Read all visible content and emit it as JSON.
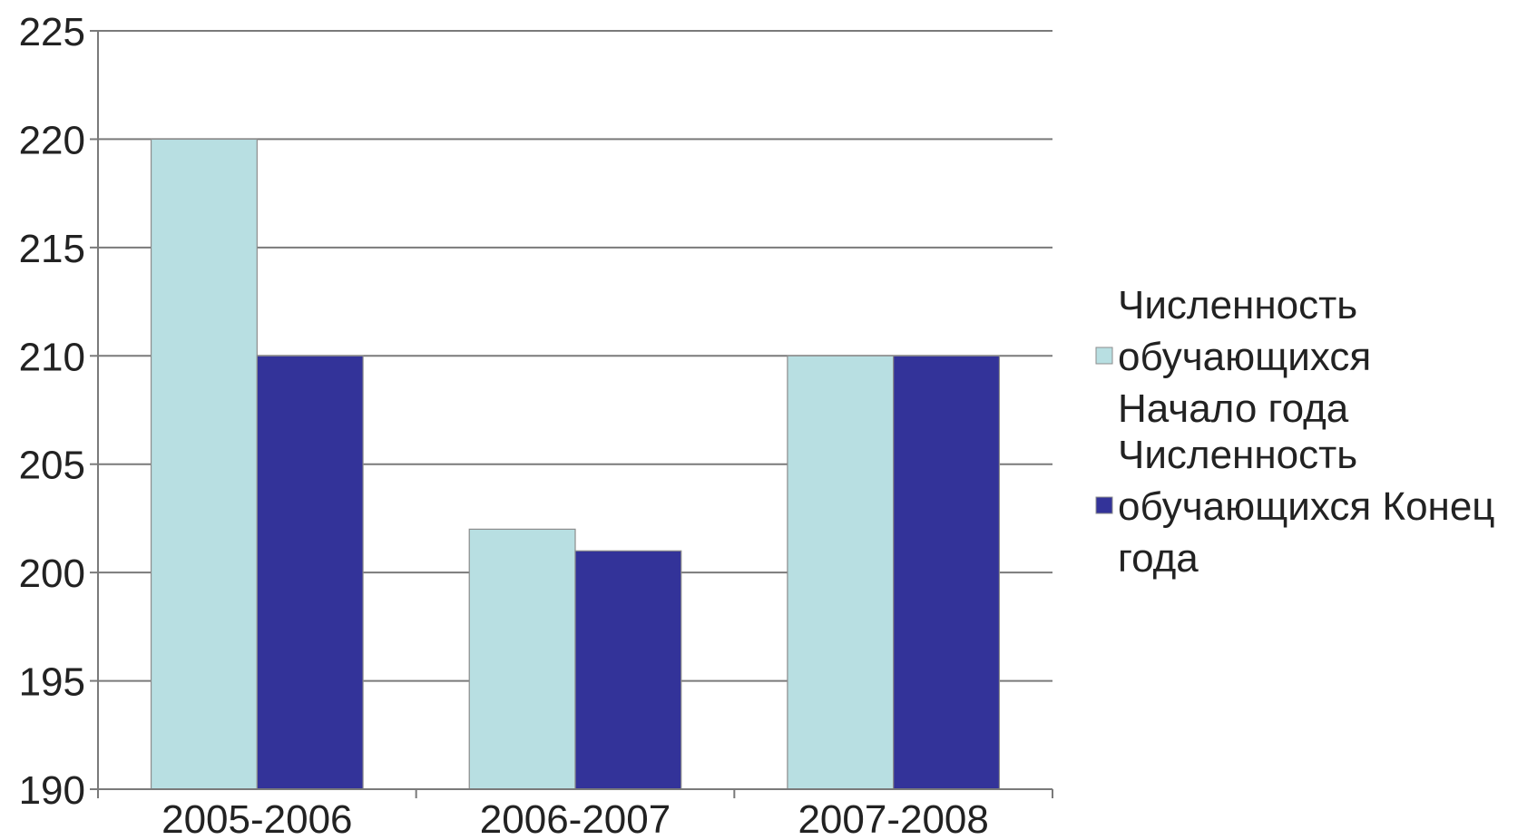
{
  "chart_data": {
    "type": "bar",
    "categories": [
      "2005-2006",
      "2006-2007",
      "2007-2008"
    ],
    "series": [
      {
        "name": "Численность обучающихся Начало года",
        "legend_lines": [
          "Численность",
          "обучающихся",
          "Начало года"
        ],
        "color": "#b8dfe2",
        "values": [
          220,
          202,
          210
        ]
      },
      {
        "name": "Численность обучающихся Конец года",
        "legend_lines": [
          "Численность",
          "обучающихся Конец",
          "года"
        ],
        "color": "#333399",
        "values": [
          210,
          201,
          210
        ]
      }
    ],
    "ylim": [
      190,
      225
    ],
    "yticks": [
      190,
      195,
      200,
      205,
      210,
      215,
      220,
      225
    ],
    "ytick_labels": [
      "190",
      "195",
      "200",
      "205",
      "210",
      "215",
      "220",
      "225"
    ],
    "grid": true,
    "legend_position": "right",
    "title": "",
    "xlabel": "",
    "ylabel": ""
  }
}
